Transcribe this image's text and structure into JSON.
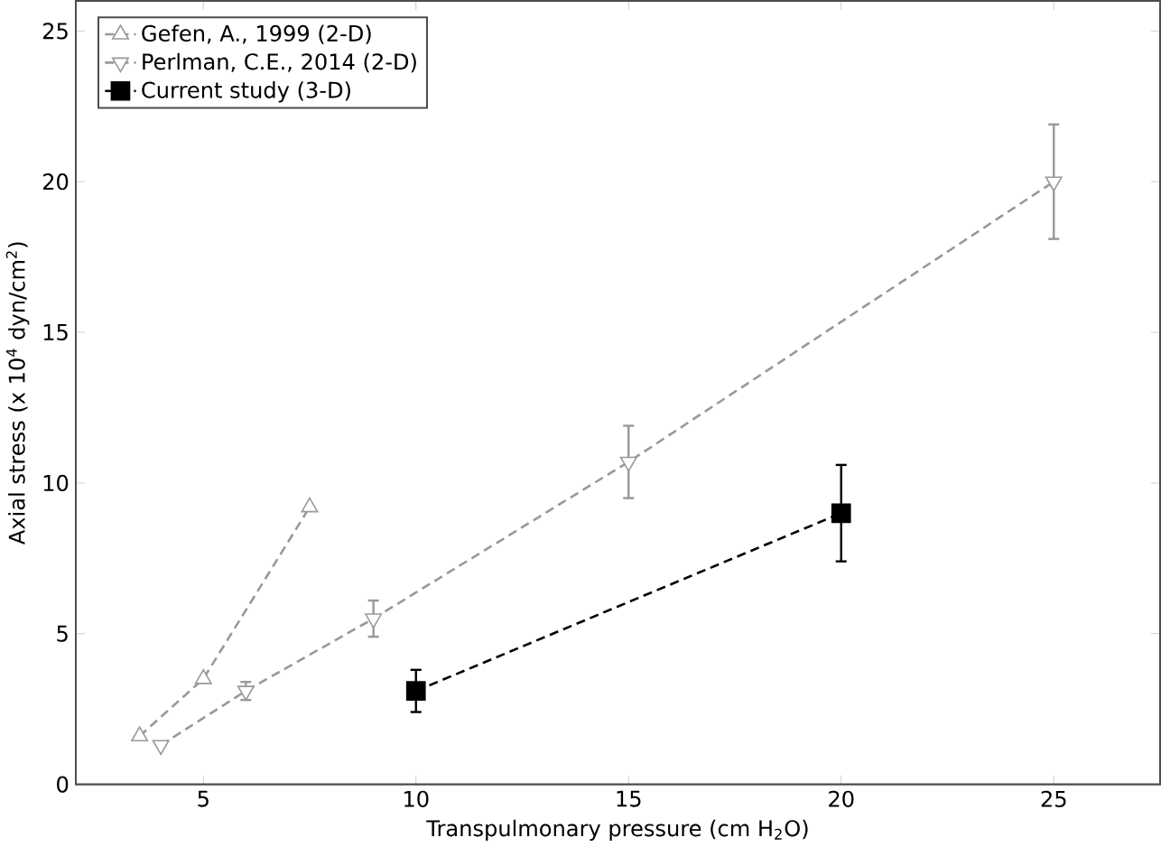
{
  "chart_data": {
    "type": "line",
    "xlabel": "Transpulmonary pressure (cm H$_{2}$O)",
    "ylabel": "Axial stress (x 10$^{4}$ dyn/cm$^{2}$)",
    "xlim": [
      2,
      27.5
    ],
    "ylim": [
      0,
      26
    ],
    "xticks": [
      5,
      10,
      15,
      20,
      25
    ],
    "yticks": [
      0,
      5,
      10,
      15,
      20,
      25
    ],
    "grid": false,
    "legend": "top left",
    "line_style": "dashed",
    "series": [
      {
        "name": "Gefen, A., 1999 (2-D)",
        "color": "#999999",
        "marker": "triangle",
        "x": [
          3.5,
          5,
          7.5
        ],
        "values": [
          1.6,
          3.5,
          9.2
        ]
      },
      {
        "name": "Perlman, C.E., 2014 (2-D)",
        "color": "#999999",
        "marker": "triangle-down",
        "x": [
          4,
          6,
          9,
          15,
          25
        ],
        "values": [
          1.3,
          3.1,
          5.5,
          10.7,
          20
        ],
        "errors": [
          null,
          0.3,
          0.6,
          1.2,
          1.9
        ]
      },
      {
        "name": "Current study (3-D)",
        "color": "#000000",
        "marker": "square",
        "x": [
          10,
          20
        ],
        "values": [
          3.1,
          9.0
        ],
        "errors": [
          0.7,
          1.6
        ]
      }
    ]
  }
}
